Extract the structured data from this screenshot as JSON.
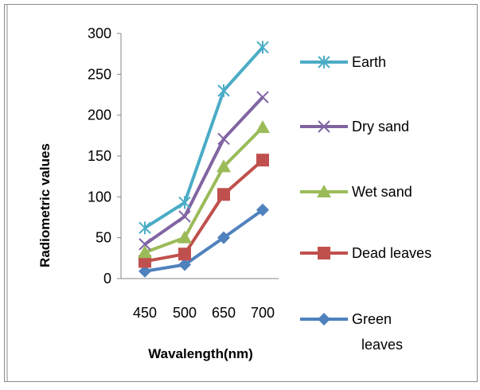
{
  "chart_data": {
    "type": "line",
    "title": "",
    "xlabel": "Wavalength(nm)",
    "ylabel": "Radiometric values",
    "categories": [
      "450",
      "500",
      "650",
      "700"
    ],
    "ylim": [
      0,
      300
    ],
    "yticks": [
      0,
      50,
      100,
      150,
      200,
      250,
      300
    ],
    "grid": false,
    "legend_position": "right",
    "series": [
      {
        "name": "Earth",
        "values": [
          62,
          93,
          230,
          283
        ],
        "color": "#4bacc6",
        "marker": "star"
      },
      {
        "name": "Dry sand",
        "values": [
          42,
          76,
          171,
          222
        ],
        "color": "#8064a2",
        "marker": "x"
      },
      {
        "name": "Wet sand",
        "values": [
          32,
          50,
          137,
          185
        ],
        "color": "#9bbb59",
        "marker": "triangle"
      },
      {
        "name": "Dead leaves",
        "values": [
          21,
          30,
          103,
          145
        ],
        "color": "#c0504d",
        "marker": "square"
      },
      {
        "name": "Green leaves",
        "values": [
          9,
          17,
          50,
          84
        ],
        "color": "#4f81bd",
        "marker": "diamond"
      }
    ]
  }
}
